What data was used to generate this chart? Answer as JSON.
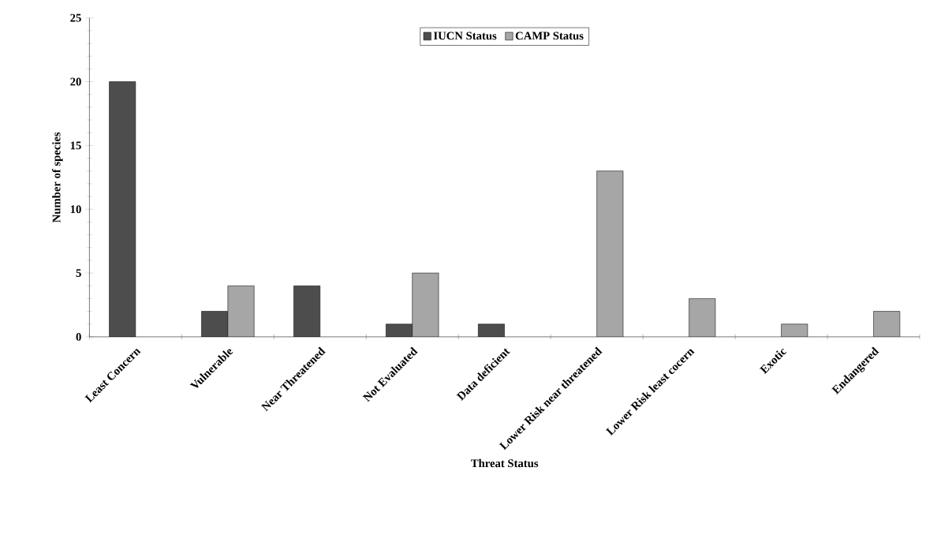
{
  "chart_data": {
    "type": "bar",
    "xlabel": "Threat Status",
    "ylabel": "Number of species",
    "categories": [
      "Least Concern",
      "Vulnerable",
      "Near Threatened",
      "Not Evaluated",
      "Data deficient",
      "Lower Risk near threatened",
      "Lower Risk least cocern",
      "Exotic",
      "Endangered"
    ],
    "series": [
      {
        "name": "IUCN Status",
        "color": "#4d4d4d",
        "values": [
          20,
          2,
          4,
          1,
          1,
          null,
          null,
          null,
          null
        ]
      },
      {
        "name": "CAMP Status",
        "color": "#a6a6a6",
        "values": [
          null,
          4,
          null,
          5,
          null,
          13,
          3,
          1,
          2
        ]
      }
    ],
    "ylim": [
      0,
      25
    ],
    "yticks": [
      0,
      5,
      10,
      15,
      20,
      25
    ],
    "grid": false,
    "legend": "top"
  }
}
